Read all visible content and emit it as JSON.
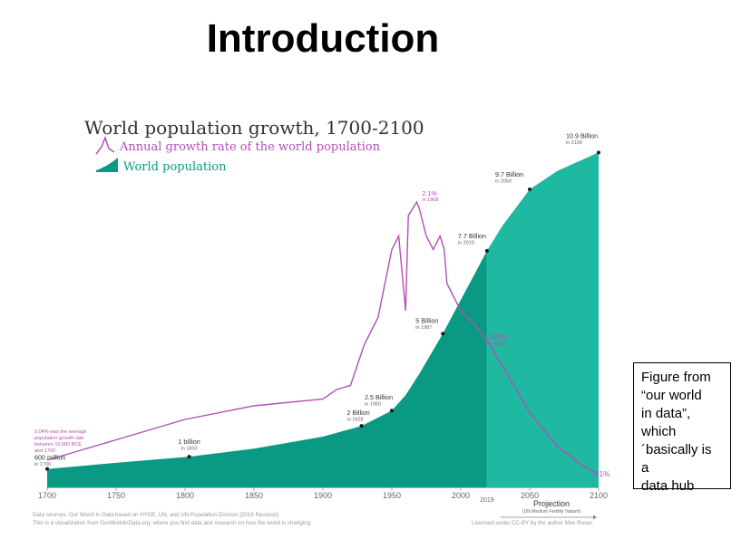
{
  "slide": {
    "title": "Introduction",
    "note": "Figure from\n“our world\nin data”,\nwhich\n´basically is a\ndata hub"
  },
  "colors": {
    "population_dark": "#0a9a83",
    "population_projection": "#1fb8a0",
    "growth_rate": "#b34fb6",
    "title_text": "#333333",
    "legend_text": "#3f3f3f"
  },
  "chart_data": {
    "type": "area",
    "title": "World population growth, 1700-2100",
    "legend": [
      {
        "name": "Annual growth rate of the world population",
        "type": "line",
        "color": "#b34fb6"
      },
      {
        "name": "World population",
        "type": "area",
        "color": "#0a9a83"
      }
    ],
    "legend_position": "top-left",
    "grid": false,
    "xlim": [
      1700,
      2100
    ],
    "x_ticks": [
      "1700",
      "1750",
      "1800",
      "1850",
      "1900",
      "1950",
      "2000",
      "2050",
      "2100"
    ],
    "x_extra_tick": "2019",
    "projection_start": 2019,
    "projection_label": "Projection",
    "projection_sublabel": "(UN Medium Fertility Variant)",
    "population_ylim": [
      0,
      11.5
    ],
    "growth_ylim": [
      0,
      2.6
    ],
    "series": [
      {
        "name": "World population",
        "unit": "billion",
        "x": [
          1700,
          1750,
          1803,
          1850,
          1900,
          1928,
          1950,
          1960,
          1970,
          1987,
          2000,
          2019,
          2030,
          2050,
          2070,
          2100
        ],
        "values": [
          0.6,
          0.8,
          1.0,
          1.26,
          1.65,
          2.0,
          2.5,
          3.0,
          3.7,
          5.0,
          6.1,
          7.7,
          8.5,
          9.7,
          10.3,
          10.9
        ]
      },
      {
        "name": "Annual growth rate of the world population",
        "unit": "percent",
        "x": [
          1700,
          1750,
          1800,
          1850,
          1900,
          1910,
          1920,
          1930,
          1940,
          1950,
          1955,
          1960,
          1962,
          1965,
          1968,
          1970,
          1975,
          1980,
          1985,
          1988,
          1990,
          1995,
          2000,
          2010,
          2019,
          2030,
          2050,
          2070,
          2090,
          2100
        ],
        "values": [
          0.2,
          0.35,
          0.5,
          0.6,
          0.65,
          0.72,
          0.75,
          1.05,
          1.25,
          1.75,
          1.85,
          1.3,
          2.0,
          2.05,
          2.1,
          2.05,
          1.85,
          1.75,
          1.85,
          1.75,
          1.5,
          1.4,
          1.3,
          1.2,
          1.08,
          0.9,
          0.55,
          0.3,
          0.15,
          0.1
        ]
      }
    ],
    "annotations": {
      "population_points": [
        {
          "x": 1700,
          "y": 0.6,
          "label": "600 million",
          "sub": "in 1700"
        },
        {
          "x": 1803,
          "y": 1.0,
          "label": "1 billion",
          "sub": "in 1803"
        },
        {
          "x": 1928,
          "y": 2.0,
          "label": "2 Billion",
          "sub": "in 1928"
        },
        {
          "x": 1950,
          "y": 2.5,
          "label": "2.5 Billion",
          "sub": "in 1950"
        },
        {
          "x": 1987,
          "y": 5.0,
          "label": "5 Billion",
          "sub": "in 1987"
        },
        {
          "x": 2019,
          "y": 7.7,
          "label": "7.7 Billion",
          "sub": "in 2019"
        },
        {
          "x": 2050,
          "y": 9.7,
          "label": "9.7 Billion",
          "sub": "in 2050"
        },
        {
          "x": 2100,
          "y": 10.9,
          "label": "10.9 Billion",
          "sub": "in 2100"
        }
      ],
      "growth_points": [
        {
          "x": 1968,
          "y": 2.1,
          "label": "2.1%",
          "sub": "in 1968"
        },
        {
          "x": 2019,
          "y": 1.08,
          "label": "1.08%",
          "sub": "in 2019"
        },
        {
          "x": 2100,
          "y": 0.1,
          "label": "0.1%",
          "sub": ""
        }
      ],
      "pre_note": [
        "0.04% was the average",
        "population growth rate",
        "between 10,000 BCE",
        "and 1700"
      ]
    },
    "footer": {
      "sources": "Data sources: Our World in Data based on HYDE, UN, and UN Population Division [2019 Revision]",
      "visualization": "This is a visualization from OurWorldinData.org, where you find data and research on how the world is changing.",
      "license": "Licensed under CC-BY by the author Max Roser."
    }
  }
}
